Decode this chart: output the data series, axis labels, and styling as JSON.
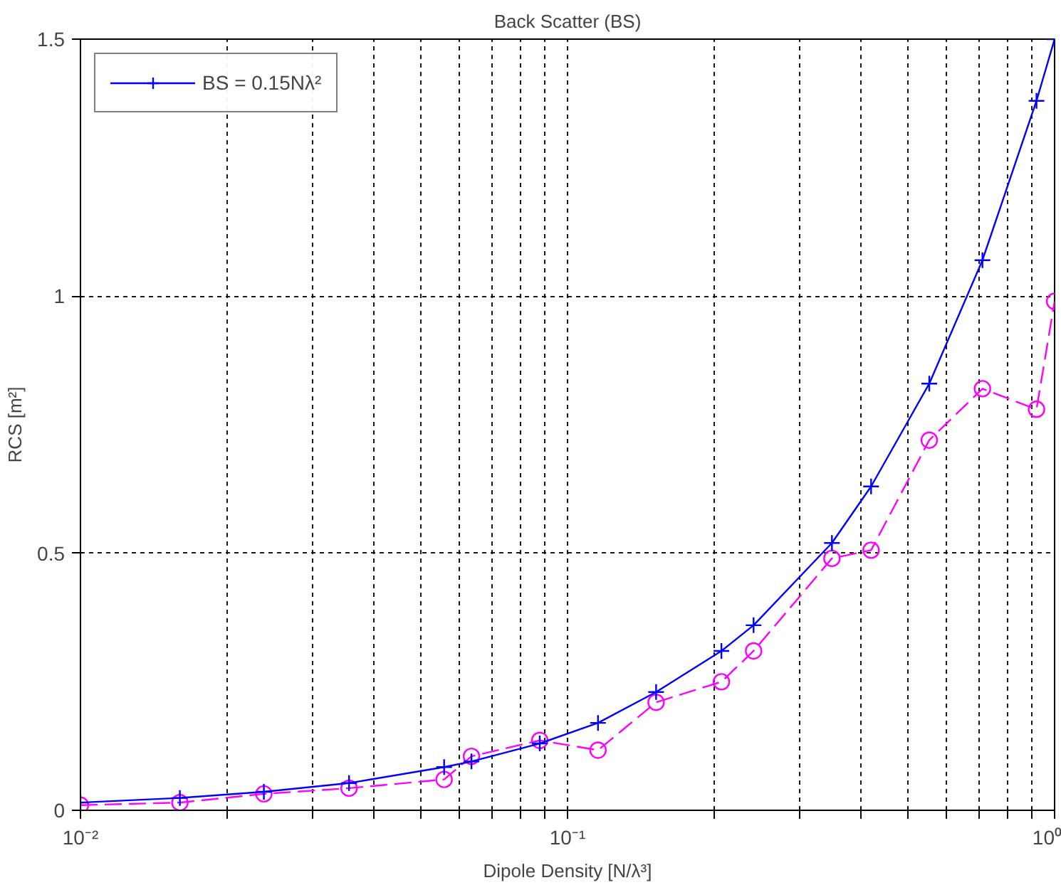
{
  "chart_data": {
    "type": "line",
    "title": "Back Scatter (BS)",
    "xlabel": "Dipole Density [N/λ³]",
    "ylabel": "RCS [m²]",
    "log": "x",
    "grid": true,
    "legend": "top left",
    "xlim": [
      0.01,
      1
    ],
    "ylim": [
      0,
      1.5
    ],
    "xticks": [
      {
        "value": 0.01,
        "label": "10⁻²"
      },
      {
        "value": 0.02,
        "label": null
      },
      {
        "value": 0.03,
        "label": null
      },
      {
        "value": 0.04,
        "label": null
      },
      {
        "value": 0.05,
        "label": null
      },
      {
        "value": 0.06,
        "label": null
      },
      {
        "value": 0.07,
        "label": null
      },
      {
        "value": 0.08,
        "label": null
      },
      {
        "value": 0.09,
        "label": null
      },
      {
        "value": 0.1,
        "label": "10⁻¹"
      },
      {
        "value": 0.2,
        "label": null
      },
      {
        "value": 0.3,
        "label": null
      },
      {
        "value": 0.4,
        "label": null
      },
      {
        "value": 0.5,
        "label": null
      },
      {
        "value": 0.6,
        "label": null
      },
      {
        "value": 0.7,
        "label": null
      },
      {
        "value": 0.8,
        "label": null
      },
      {
        "value": 0.9,
        "label": null
      },
      {
        "value": 1,
        "label": "10⁰"
      }
    ],
    "yticks": [
      0,
      0.5,
      1,
      1.5
    ],
    "series": [
      {
        "name": "BS = 0.15Nλ²",
        "color": "#0000ff",
        "marker": "cross",
        "line_style": "solid",
        "x": [
          0.01,
          0.016,
          0.0238,
          0.0356,
          0.0558,
          0.0635,
          0.0877,
          0.1155,
          0.152,
          0.207,
          0.241,
          0.349,
          0.42,
          0.553,
          0.711,
          0.918,
          1
        ],
        "values": [
          0.015,
          0.024,
          0.036,
          0.053,
          0.084,
          0.095,
          0.13,
          0.17,
          0.23,
          0.31,
          0.36,
          0.52,
          0.63,
          0.83,
          1.07,
          1.38,
          1.5
        ]
      },
      {
        "color": "#ff00ff",
        "marker": "circle",
        "line_style": "dashed",
        "x": [
          0.01,
          0.016,
          0.0238,
          0.0356,
          0.0558,
          0.0635,
          0.0877,
          0.1155,
          0.152,
          0.207,
          0.241,
          0.349,
          0.42,
          0.553,
          0.711,
          0.918,
          1
        ],
        "values": [
          0.01,
          0.015,
          0.032,
          0.043,
          0.06,
          0.105,
          0.136,
          0.117,
          0.21,
          0.25,
          0.31,
          0.49,
          0.506,
          0.72,
          0.82,
          0.78,
          0.99
        ]
      }
    ]
  }
}
